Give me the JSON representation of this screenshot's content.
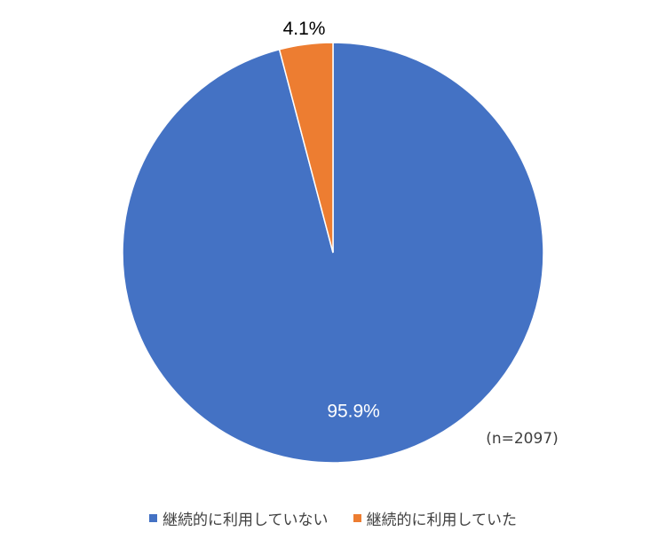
{
  "chart_data": {
    "type": "pie",
    "slices": [
      {
        "label": "継続的に利用していない",
        "value": 95.9,
        "value_label": "95.9%",
        "color": "#4472C4",
        "label_color": "#ffffff"
      },
      {
        "label": "継続的に利用していた",
        "value": 4.1,
        "value_label": "4.1%",
        "color": "#ED7D31",
        "label_color": "#000000"
      }
    ],
    "start_angle": "12 o'clock",
    "direction": "clockwise",
    "sample_note": "(n=2097)",
    "legend_position": "bottom"
  }
}
